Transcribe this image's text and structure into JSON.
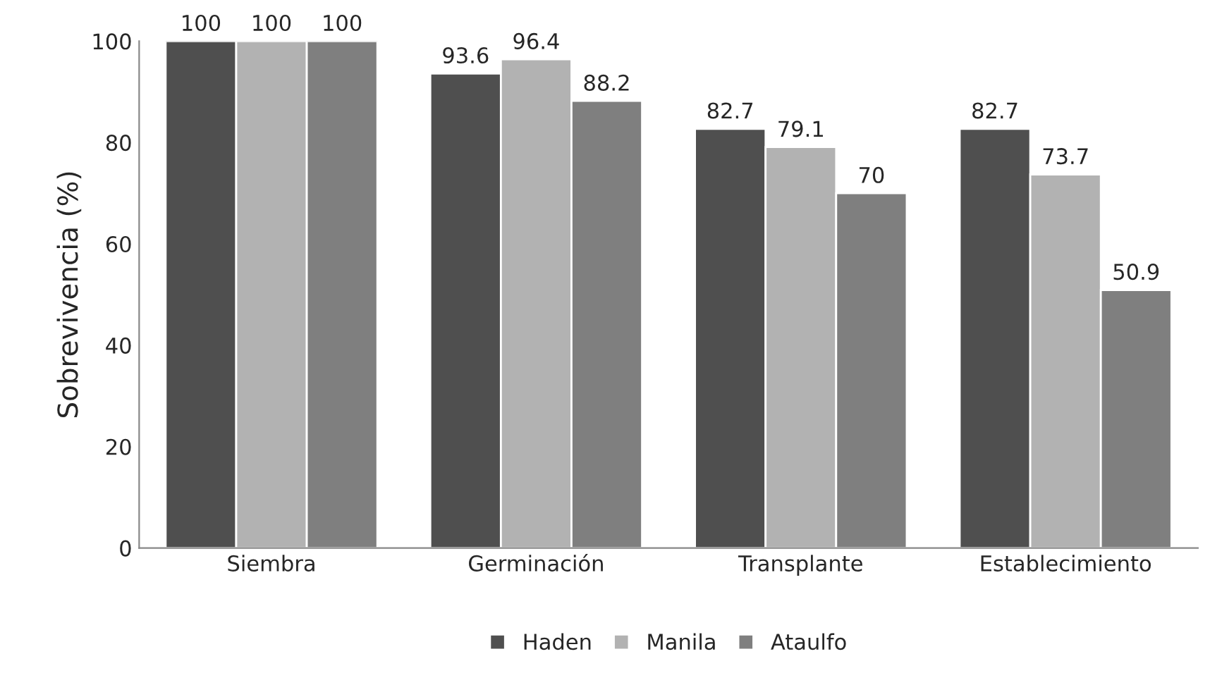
{
  "chart_data": {
    "type": "bar",
    "ylabel": "Sobrevivencia (%)",
    "categories": [
      "Siembra",
      "Germinación",
      "Transplante",
      "Establecimiento"
    ],
    "series": [
      {
        "name": "Haden",
        "color": "#4f4f4f",
        "values": [
          100,
          93.6,
          82.7,
          82.7
        ]
      },
      {
        "name": "Manila",
        "color": "#b2b2b2",
        "values": [
          100,
          96.4,
          79.1,
          73.7
        ]
      },
      {
        "name": "Ataulfo",
        "color": "#7f7f7f",
        "values": [
          100,
          88.2,
          70,
          50.9
        ]
      }
    ],
    "ylim": [
      0,
      100
    ],
    "yticks": [
      0,
      20,
      40,
      60,
      80,
      100
    ],
    "grid": false,
    "legend": "bottom",
    "data_labels": true
  }
}
